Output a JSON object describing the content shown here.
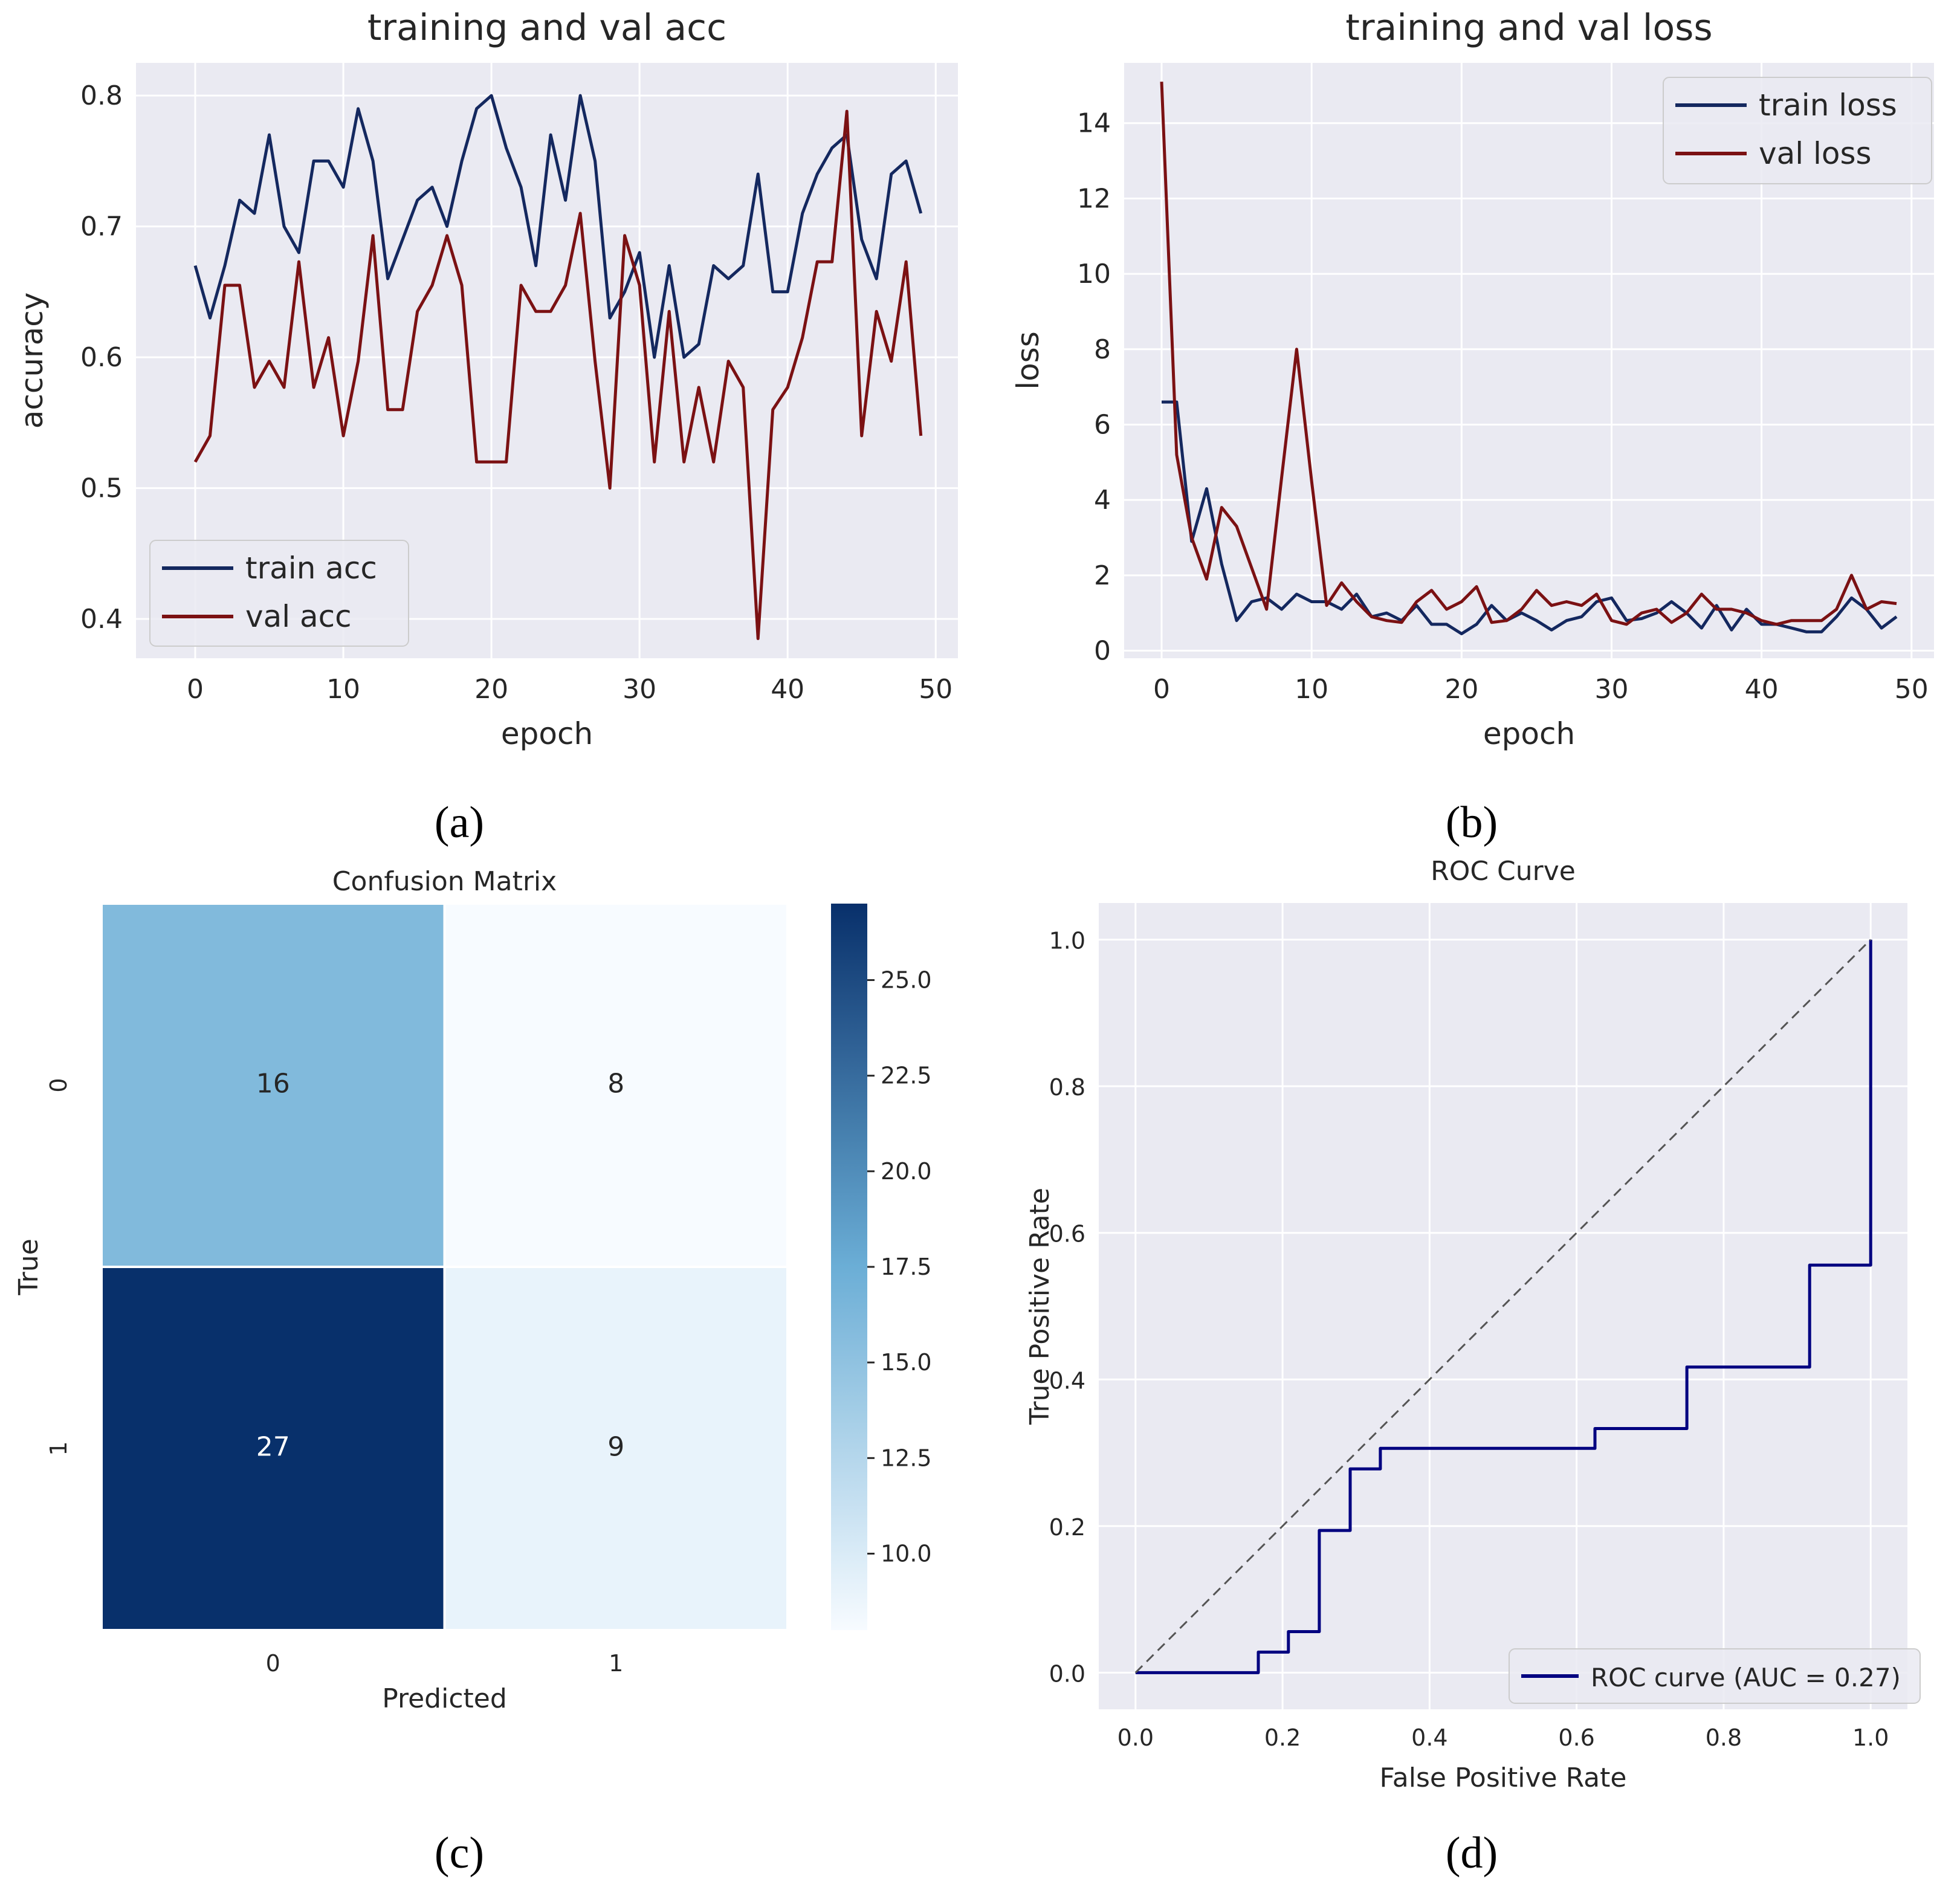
{
  "chart_data": [
    {
      "panel": "a",
      "type": "line",
      "title": "training and val acc",
      "xlabel": "epoch",
      "ylabel": "accuracy",
      "xlim": [
        -4,
        51.5
      ],
      "ylim": [
        0.37,
        0.825
      ],
      "xticks": [
        0,
        10,
        20,
        30,
        40,
        50
      ],
      "yticks": [
        0.4,
        0.5,
        0.6,
        0.7,
        0.8
      ],
      "grid": true,
      "legend": "lower-left",
      "x": [
        0,
        1,
        2,
        3,
        4,
        5,
        6,
        7,
        8,
        9,
        10,
        11,
        12,
        13,
        14,
        15,
        16,
        17,
        18,
        19,
        20,
        21,
        22,
        23,
        24,
        25,
        26,
        27,
        28,
        29,
        30,
        31,
        32,
        33,
        34,
        35,
        36,
        37,
        38,
        39,
        40,
        41,
        42,
        43,
        44,
        45,
        46,
        47,
        48,
        49
      ],
      "series": [
        {
          "name": "train acc",
          "color": "#14285f",
          "values": [
            0.67,
            0.63,
            0.67,
            0.72,
            0.71,
            0.77,
            0.7,
            0.68,
            0.75,
            0.75,
            0.73,
            0.79,
            0.75,
            0.66,
            0.69,
            0.72,
            0.73,
            0.7,
            0.75,
            0.79,
            0.8,
            0.76,
            0.73,
            0.67,
            0.77,
            0.72,
            0.8,
            0.75,
            0.63,
            0.65,
            0.68,
            0.6,
            0.67,
            0.6,
            0.61,
            0.67,
            0.66,
            0.67,
            0.74,
            0.65,
            0.65,
            0.71,
            0.74,
            0.76,
            0.77,
            0.69,
            0.66,
            0.74,
            0.75,
            0.71
          ]
        },
        {
          "name": "val acc",
          "color": "#7b1113",
          "values": [
            0.52,
            0.54,
            0.655,
            0.655,
            0.577,
            0.597,
            0.577,
            0.673,
            0.577,
            0.615,
            0.54,
            0.597,
            0.693,
            0.56,
            0.56,
            0.635,
            0.655,
            0.693,
            0.655,
            0.52,
            0.52,
            0.52,
            0.655,
            0.635,
            0.635,
            0.655,
            0.71,
            0.597,
            0.5,
            0.693,
            0.655,
            0.52,
            0.635,
            0.52,
            0.577,
            0.52,
            0.597,
            0.577,
            0.385,
            0.56,
            0.577,
            0.615,
            0.673,
            0.673,
            0.788,
            0.54,
            0.635,
            0.597,
            0.673,
            0.54
          ]
        }
      ]
    },
    {
      "panel": "b",
      "type": "line",
      "title": "training and val loss",
      "xlabel": "epoch",
      "ylabel": "loss",
      "xlim": [
        -2.5,
        51.5
      ],
      "ylim": [
        -0.2,
        15.6
      ],
      "xticks": [
        0,
        10,
        20,
        30,
        40,
        50
      ],
      "yticks": [
        0,
        2,
        4,
        6,
        8,
        10,
        12,
        14
      ],
      "grid": true,
      "legend": "top-right",
      "x": [
        0,
        1,
        2,
        3,
        4,
        5,
        6,
        7,
        8,
        9,
        10,
        11,
        12,
        13,
        14,
        15,
        16,
        17,
        18,
        19,
        20,
        21,
        22,
        23,
        24,
        25,
        26,
        27,
        28,
        29,
        30,
        31,
        32,
        33,
        34,
        35,
        36,
        37,
        38,
        39,
        40,
        41,
        42,
        43,
        44,
        45,
        46,
        47,
        48,
        49
      ],
      "series": [
        {
          "name": "train loss",
          "color": "#14285f",
          "values": [
            6.6,
            6.6,
            2.9,
            4.3,
            2.3,
            0.8,
            1.3,
            1.4,
            1.1,
            1.5,
            1.3,
            1.3,
            1.1,
            1.5,
            0.9,
            1.0,
            0.8,
            1.2,
            0.7,
            0.7,
            0.45,
            0.7,
            1.2,
            0.8,
            1.0,
            0.8,
            0.55,
            0.8,
            0.9,
            1.3,
            1.4,
            0.8,
            0.85,
            1.0,
            1.3,
            1.0,
            0.6,
            1.2,
            0.55,
            1.1,
            0.7,
            0.7,
            0.6,
            0.5,
            0.5,
            0.9,
            1.4,
            1.1,
            0.6,
            0.9
          ]
        },
        {
          "name": "val loss",
          "color": "#7b1113",
          "values": [
            15.1,
            5.2,
            3.0,
            1.9,
            3.8,
            3.3,
            2.2,
            1.1,
            4.6,
            8.0,
            4.5,
            1.2,
            1.8,
            1.3,
            0.9,
            0.8,
            0.75,
            1.3,
            1.6,
            1.1,
            1.3,
            1.7,
            0.75,
            0.8,
            1.1,
            1.6,
            1.2,
            1.3,
            1.2,
            1.5,
            0.8,
            0.7,
            1.0,
            1.1,
            0.75,
            1.0,
            1.5,
            1.1,
            1.1,
            1.0,
            0.8,
            0.7,
            0.8,
            0.8,
            0.8,
            1.1,
            2.0,
            1.1,
            1.3,
            1.25
          ]
        }
      ]
    },
    {
      "panel": "c",
      "type": "heatmap",
      "title": "Confusion Matrix",
      "xlabel": "Predicted",
      "ylabel": "True",
      "xticklabels": [
        "0",
        "1"
      ],
      "yticklabels": [
        "0",
        "1"
      ],
      "values": [
        [
          16,
          8
        ],
        [
          27,
          9
        ]
      ],
      "colormap": "Blues",
      "colorbar_range": [
        8,
        27
      ],
      "colorbar_ticks": [
        10.0,
        12.5,
        15.0,
        17.5,
        20.0,
        22.5,
        25.0
      ]
    },
    {
      "panel": "d",
      "type": "line",
      "title": "ROC Curve",
      "xlabel": "False Positive Rate",
      "ylabel": "True Positive Rate",
      "xlim": [
        -0.05,
        1.05
      ],
      "ylim": [
        -0.05,
        1.05
      ],
      "xticks": [
        0.0,
        0.2,
        0.4,
        0.6,
        0.8,
        1.0
      ],
      "yticks": [
        0.0,
        0.2,
        0.4,
        0.6,
        0.8,
        1.0
      ],
      "grid": true,
      "legend": "lower-right",
      "series": [
        {
          "name": "ROC curve (AUC = 0.27)",
          "color": "#000080",
          "x": [
            0.0,
            0.167,
            0.167,
            0.208,
            0.208,
            0.25,
            0.25,
            0.292,
            0.292,
            0.333,
            0.333,
            0.625,
            0.625,
            0.75,
            0.75,
            0.917,
            0.917,
            1.0,
            1.0
          ],
          "y": [
            0.0,
            0.0,
            0.028,
            0.028,
            0.056,
            0.056,
            0.194,
            0.194,
            0.278,
            0.278,
            0.306,
            0.306,
            0.333,
            0.333,
            0.417,
            0.417,
            0.556,
            0.556,
            1.0
          ]
        },
        {
          "name": "",
          "color": "#555555",
          "dashed": true,
          "x": [
            0,
            1
          ],
          "y": [
            0,
            1
          ]
        }
      ]
    }
  ],
  "panel_labels": [
    "(a)",
    "(b)",
    "(c)",
    "(d)"
  ]
}
